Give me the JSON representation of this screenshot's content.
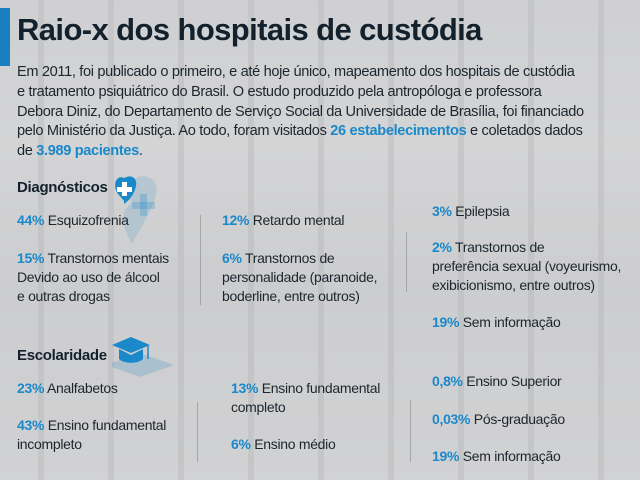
{
  "title": "Raio-x dos hospitais de custódia",
  "intro": {
    "line1": "Em 2011, foi publicado o primeiro, e até hoje único, mapeamento dos hospitais de custódia",
    "line2": "e tratamento psiquiátrico do Brasil. O estudo produzido pela antropóloga e professora",
    "line3": "Debora Diniz, do Departamento de Serviço Social da Universidade de Brasília, foi financiado",
    "line4_pre": "pelo Ministério da Justiça. Ao todo, foram visitados ",
    "highlight1": "26 estabelecimentos",
    "line4_post": " e coletados dados",
    "line5_pre": "de ",
    "highlight2": "3.989 pacientes",
    "line5_post": "."
  },
  "colors": {
    "accent": "#1a7fc1",
    "highlight": "#1a88c9",
    "title": "#13212d"
  },
  "diagnosticos": {
    "heading": "Diagnósticos",
    "icon": "heart-plus-icon",
    "items": [
      {
        "pct": "44%",
        "label": " Esquizofrenia"
      },
      {
        "pct": "15%",
        "label": " Transtornos mentais\nDevido ao uso de álcool\ne outras drogas"
      },
      {
        "pct": "12%",
        "label": " Retardo mental"
      },
      {
        "pct": "6%",
        "label": " Transtornos de\npersonalidade (paranoide,\nboderline, entre outros)"
      },
      {
        "pct": "3%",
        "label": " Epilepsia"
      },
      {
        "pct": "2%",
        "label": " Transtornos de\npreferência sexual (voyeurismo,\nexibicionismo, entre outros)"
      },
      {
        "pct": "19%",
        "label": " Sem informação"
      }
    ]
  },
  "escolaridade": {
    "heading": "Escolaridade",
    "icon": "graduation-cap-icon",
    "items": [
      {
        "pct": "23%",
        "label": " Analfabetos"
      },
      {
        "pct": "43%",
        "label": " Ensino fundamental\nincompleto"
      },
      {
        "pct": "13%",
        "label": " Ensino fundamental\ncompleto"
      },
      {
        "pct": "6%",
        "label": " Ensino médio"
      },
      {
        "pct": "0,8%",
        "label": " Ensino Superior"
      },
      {
        "pct": "0,03%",
        "label": " Pós-graduação"
      },
      {
        "pct": "19%",
        "label": " Sem informação"
      }
    ]
  }
}
